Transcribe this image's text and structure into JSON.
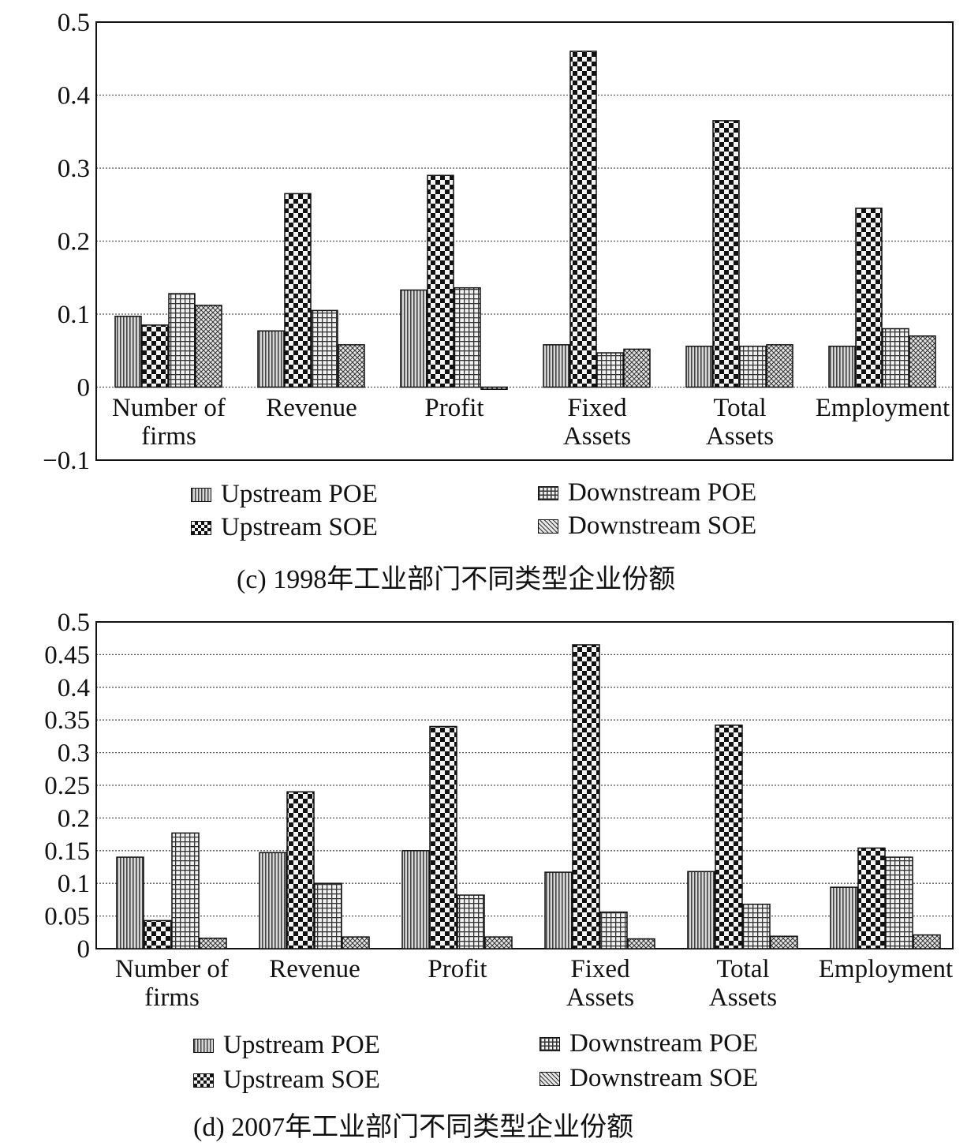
{
  "chart_data": [
    {
      "type": "bar",
      "caption": "(c) 1998年工业部门不同类型企业份额",
      "categories": [
        [
          "Number of",
          "firms"
        ],
        [
          "Revenue"
        ],
        [
          "Profit"
        ],
        [
          "Fixed",
          "Assets"
        ],
        [
          "Total",
          "Assets"
        ],
        [
          "Employment"
        ]
      ],
      "ylim": [
        -0.1,
        0.5
      ],
      "yticks": [
        -0.1,
        0,
        0.1,
        0.2,
        0.3,
        0.4,
        0.5
      ],
      "ytick_labels": [
        "−0.1",
        "0",
        "0.1",
        "0.2",
        "0.3",
        "0.4",
        "0.5"
      ],
      "grid": true,
      "legend_position": "bottom",
      "series": [
        {
          "name": "Upstream POE",
          "pattern": "vertical-lines",
          "values": [
            0.097,
            0.077,
            0.133,
            0.058,
            0.056,
            0.056
          ]
        },
        {
          "name": "Upstream SOE",
          "pattern": "checker",
          "values": [
            0.085,
            0.265,
            0.29,
            0.46,
            0.365,
            0.245
          ]
        },
        {
          "name": "Downstream POE",
          "pattern": "grid",
          "values": [
            0.128,
            0.105,
            0.136,
            0.047,
            0.056,
            0.08
          ]
        },
        {
          "name": "Downstream SOE",
          "pattern": "crosshatch",
          "values": [
            0.112,
            0.058,
            -0.003,
            0.052,
            0.058,
            0.07
          ]
        }
      ]
    },
    {
      "type": "bar",
      "caption": "(d) 2007年工业部门不同类型企业份额",
      "categories": [
        [
          "Number of",
          "firms"
        ],
        [
          "Revenue"
        ],
        [
          "Profit"
        ],
        [
          "Fixed",
          "Assets"
        ],
        [
          "Total",
          "Assets"
        ],
        [
          "Employment"
        ]
      ],
      "ylim": [
        0,
        0.5
      ],
      "yticks": [
        0,
        0.05,
        0.1,
        0.15,
        0.2,
        0.25,
        0.3,
        0.35,
        0.4,
        0.45,
        0.5
      ],
      "ytick_labels": [
        "0",
        "0.05",
        "0.1",
        "0.15",
        "0.2",
        "0.25",
        "0.3",
        "0.35",
        "0.4",
        "0.45",
        "0.5"
      ],
      "grid": true,
      "legend_position": "bottom",
      "series": [
        {
          "name": "Upstream POE",
          "pattern": "vertical-lines",
          "values": [
            0.14,
            0.147,
            0.15,
            0.117,
            0.118,
            0.094
          ]
        },
        {
          "name": "Upstream SOE",
          "pattern": "checker",
          "values": [
            0.043,
            0.24,
            0.34,
            0.465,
            0.342,
            0.154
          ]
        },
        {
          "name": "Downstream POE",
          "pattern": "grid",
          "values": [
            0.177,
            0.1,
            0.082,
            0.056,
            0.068,
            0.14
          ]
        },
        {
          "name": "Downstream SOE",
          "pattern": "crosshatch",
          "values": [
            0.016,
            0.018,
            0.018,
            0.015,
            0.019,
            0.021
          ]
        }
      ]
    }
  ]
}
